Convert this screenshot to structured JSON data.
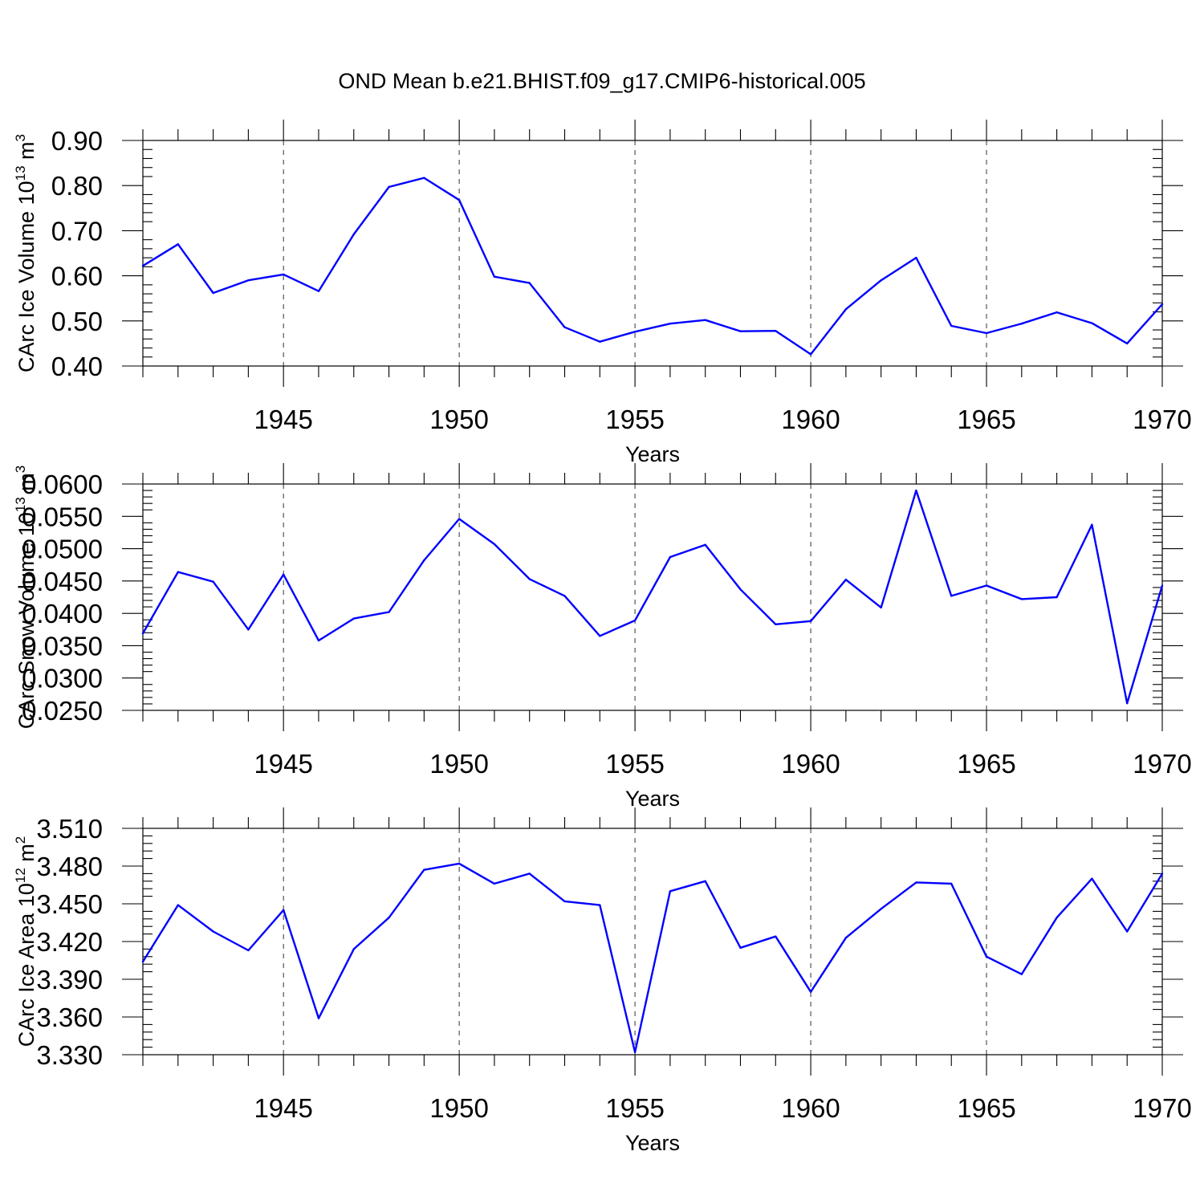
{
  "title": "OND Mean b.e21.BHIST.f09_g17.CMIP6-historical.005",
  "colors": {
    "series": "#0000ff",
    "axis": "#000000",
    "background": "#ffffff"
  },
  "chart_data": [
    {
      "type": "line",
      "ylabel_main": "CArc Ice Volume 10",
      "ylabel_exp": "13",
      "ylabel_unit": " m",
      "ylabel_unit_exp": "3",
      "xlabel": "Years",
      "xlim": [
        1941,
        1970
      ],
      "ylim": [
        0.4,
        0.9
      ],
      "yticks": [
        "0.40",
        "0.50",
        "0.60",
        "0.70",
        "0.80",
        "0.90"
      ],
      "xticks": [
        "1945",
        "1950",
        "1955",
        "1960",
        "1965",
        "1970"
      ],
      "grid": "vertical dashed at major x ticks",
      "x": [
        1941,
        1942,
        1943,
        1944,
        1945,
        1946,
        1947,
        1948,
        1949,
        1950,
        1951,
        1952,
        1953,
        1954,
        1955,
        1956,
        1957,
        1958,
        1959,
        1960,
        1961,
        1962,
        1963,
        1964,
        1965,
        1966,
        1967,
        1968,
        1969,
        1970
      ],
      "values": [
        0.622,
        0.67,
        0.562,
        0.59,
        0.603,
        0.566,
        0.692,
        0.797,
        0.817,
        0.768,
        0.598,
        0.584,
        0.486,
        0.454,
        0.476,
        0.494,
        0.502,
        0.477,
        0.478,
        0.426,
        0.526,
        0.59,
        0.64,
        0.489,
        0.473,
        0.494,
        0.519,
        0.495,
        0.45,
        0.537
      ]
    },
    {
      "type": "line",
      "ylabel_main": "CArc Snow Volume 10",
      "ylabel_exp": "13",
      "ylabel_unit": " m",
      "ylabel_unit_exp": "3",
      "xlabel": "Years",
      "xlim": [
        1941,
        1970
      ],
      "ylim": [
        0.025,
        0.06
      ],
      "yticks": [
        "0.0250",
        "0.0300",
        "0.0350",
        "0.0400",
        "0.0450",
        "0.0500",
        "0.0550",
        "0.0600"
      ],
      "xticks": [
        "1945",
        "1950",
        "1955",
        "1960",
        "1965",
        "1970"
      ],
      "grid": "vertical dashed at major x ticks",
      "x": [
        1941,
        1942,
        1943,
        1944,
        1945,
        1946,
        1947,
        1948,
        1949,
        1950,
        1951,
        1952,
        1953,
        1954,
        1955,
        1956,
        1957,
        1958,
        1959,
        1960,
        1961,
        1962,
        1963,
        1964,
        1965,
        1966,
        1967,
        1968,
        1969,
        1970
      ],
      "values": [
        0.0369,
        0.0464,
        0.0449,
        0.0375,
        0.046,
        0.0358,
        0.0392,
        0.0402,
        0.0482,
        0.0546,
        0.0507,
        0.0453,
        0.0427,
        0.0365,
        0.0389,
        0.0487,
        0.0506,
        0.0437,
        0.0383,
        0.0388,
        0.0452,
        0.0409,
        0.059,
        0.0427,
        0.0443,
        0.0422,
        0.0425,
        0.0537,
        0.0261,
        0.0443
      ]
    },
    {
      "type": "line",
      "ylabel_main": "CArc Ice Area 10",
      "ylabel_exp": "12",
      "ylabel_unit": " m",
      "ylabel_unit_exp": "2",
      "xlabel": "Years",
      "xlim": [
        1941,
        1970
      ],
      "ylim": [
        3.33,
        3.51
      ],
      "yticks": [
        "3.330",
        "3.360",
        "3.390",
        "3.420",
        "3.450",
        "3.480",
        "3.510"
      ],
      "xticks": [
        "1945",
        "1950",
        "1955",
        "1960",
        "1965",
        "1970"
      ],
      "grid": "vertical dashed at major x ticks",
      "x": [
        1941,
        1942,
        1943,
        1944,
        1945,
        1946,
        1947,
        1948,
        1949,
        1950,
        1951,
        1952,
        1953,
        1954,
        1955,
        1956,
        1957,
        1958,
        1959,
        1960,
        1961,
        1962,
        1963,
        1964,
        1965,
        1966,
        1967,
        1968,
        1969,
        1970
      ],
      "values": [
        3.404,
        3.449,
        3.428,
        3.413,
        3.445,
        3.359,
        3.414,
        3.439,
        3.477,
        3.482,
        3.466,
        3.474,
        3.452,
        3.449,
        3.332,
        3.46,
        3.468,
        3.415,
        3.424,
        3.38,
        3.423,
        3.446,
        3.467,
        3.466,
        3.408,
        3.394,
        3.439,
        3.47,
        3.428,
        3.474
      ]
    }
  ]
}
